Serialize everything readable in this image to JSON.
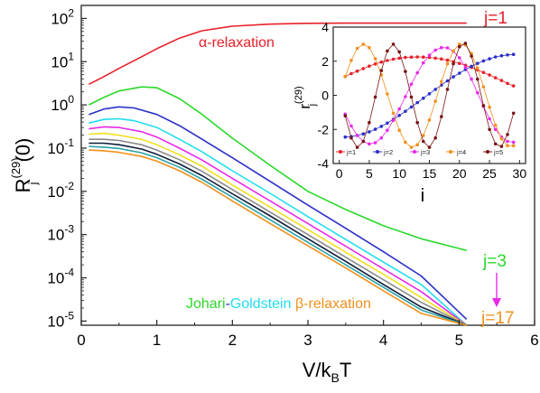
{
  "chart_data": [
    {
      "type": "line",
      "xlabel_main": "V/k",
      "xlabel_sub": "B",
      "xlabel_tail": "T",
      "ylabel_main": "R",
      "ylabel_sub": "j",
      "ylabel_sup": "(29)",
      "ylabel_tail": "(0)",
      "xlim": [
        0,
        6
      ],
      "ylim": [
        8e-06,
        200
      ],
      "yscale": "log",
      "x_ticks": [
        "0",
        "1",
        "2",
        "3",
        "4",
        "5",
        "6"
      ],
      "y_ticks": [
        {
          "value": 100,
          "mantissa": "10",
          "exp": "2"
        },
        {
          "value": 10,
          "mantissa": "10",
          "exp": "1"
        },
        {
          "value": 1,
          "mantissa": "10",
          "exp": "0"
        },
        {
          "value": 0.1,
          "mantissa": "10",
          "exp": "-1"
        },
        {
          "value": 0.01,
          "mantissa": "10",
          "exp": "-2"
        },
        {
          "value": 0.001,
          "mantissa": "10",
          "exp": "-3"
        },
        {
          "value": 0.0001,
          "mantissa": "10",
          "exp": "-4"
        },
        {
          "value": 1e-05,
          "mantissa": "10",
          "exp": "-5"
        }
      ],
      "grid": false,
      "series": [
        {
          "color": "#e8202a",
          "x": [
            0.1,
            0.3,
            0.5,
            0.8,
            1.0,
            1.3,
            1.6,
            2.0,
            2.5,
            3.0,
            3.5,
            4.0,
            4.5,
            5.1
          ],
          "y": [
            3.0,
            4.5,
            7.0,
            13,
            20,
            35,
            52,
            66,
            74,
            77,
            78,
            78,
            78,
            78
          ]
        },
        {
          "color": "#2bd82b",
          "x": [
            0.1,
            0.3,
            0.5,
            0.8,
            1.0,
            1.3,
            1.6,
            2.0,
            2.5,
            3.0,
            3.5,
            4.0,
            4.5,
            5.1
          ],
          "y": [
            1.0,
            1.5,
            2.1,
            2.6,
            2.5,
            1.4,
            0.6,
            0.17,
            0.04,
            0.01,
            0.0038,
            0.0016,
            0.0008,
            0.00043
          ]
        },
        {
          "color": "#2a2fc8",
          "x": [
            0.1,
            0.3,
            0.5,
            0.7,
            1.0,
            1.3,
            1.6,
            2.0,
            2.5,
            3.0,
            3.5,
            4.0,
            4.5,
            5.1
          ],
          "y": [
            0.6,
            0.8,
            0.9,
            0.85,
            0.6,
            0.33,
            0.16,
            0.06,
            0.017,
            0.0048,
            0.0014,
            0.0004,
            0.00011,
            1.1e-05
          ]
        },
        {
          "color": "#22ddee",
          "x": [
            0.1,
            0.3,
            0.5,
            0.7,
            1.0,
            1.3,
            1.6,
            2.0,
            2.5,
            3.0,
            3.5,
            4.0,
            4.5,
            5.1
          ],
          "y": [
            0.38,
            0.46,
            0.48,
            0.43,
            0.3,
            0.16,
            0.082,
            0.03,
            0.009,
            0.0026,
            0.00077,
            0.00023,
            7e-05,
            5.2e-06
          ]
        },
        {
          "color": "#e82ae8",
          "x": [
            0.1,
            0.3,
            0.5,
            0.8,
            1.0,
            1.3,
            1.6,
            2.0,
            2.5,
            3.0,
            3.5,
            4.0,
            4.5,
            5.1
          ],
          "y": [
            0.28,
            0.31,
            0.3,
            0.24,
            0.18,
            0.1,
            0.053,
            0.02,
            0.006,
            0.0018,
            0.00054,
            0.00016,
            4.8e-05,
            3.6e-06
          ]
        },
        {
          "color": "#f0e020",
          "x": [
            0.1,
            0.3,
            0.5,
            0.8,
            1.0,
            1.3,
            1.6,
            2.0,
            2.5,
            3.0,
            3.5,
            4.0,
            4.5,
            5.1
          ],
          "y": [
            0.21,
            0.22,
            0.2,
            0.16,
            0.12,
            0.07,
            0.038,
            0.014,
            0.0043,
            0.0013,
            0.00039,
            0.00012,
            3.5e-05,
            2.6e-06
          ]
        },
        {
          "color": "#8a8a8a",
          "x": [
            0.1,
            0.3,
            0.5,
            0.8,
            1.0,
            1.3,
            1.6,
            2.0,
            2.5,
            3.0,
            3.5,
            4.0,
            4.5,
            5.1
          ],
          "y": [
            0.16,
            0.16,
            0.15,
            0.12,
            0.09,
            0.054,
            0.029,
            0.011,
            0.0033,
            0.001,
            0.0003,
            9e-05,
            2.7e-05,
            2e-06
          ]
        },
        {
          "color": "#0c1d3a",
          "x": [
            0.1,
            0.3,
            0.5,
            0.8,
            1.0,
            1.3,
            1.6,
            2.0,
            2.5,
            3.0,
            3.5,
            4.0,
            4.5,
            5.1
          ],
          "y": [
            0.13,
            0.13,
            0.12,
            0.095,
            0.072,
            0.043,
            0.023,
            0.0088,
            0.0027,
            0.0008,
            0.00024,
            7e-05,
            2.1e-05,
            1.6e-06
          ]
        },
        {
          "color": "#2aa0a8",
          "x": [
            0.1,
            0.3,
            0.5,
            0.8,
            1.0,
            1.3,
            1.6,
            2.0,
            2.5,
            3.0,
            3.5,
            4.0,
            4.5,
            5.1
          ],
          "y": [
            0.11,
            0.105,
            0.098,
            0.078,
            0.06,
            0.036,
            0.019,
            0.0073,
            0.0022,
            0.00066,
            0.0002,
            6e-05,
            1.8e-05,
            1.3e-06
          ]
        },
        {
          "color": "#f0901c",
          "x": [
            0.1,
            0.3,
            0.5,
            0.8,
            1.0,
            1.3,
            1.6,
            2.0,
            2.5,
            3.0,
            3.5,
            4.0,
            4.5,
            5.1
          ],
          "y": [
            0.09,
            0.087,
            0.08,
            0.064,
            0.05,
            0.03,
            0.016,
            0.006,
            0.0018,
            0.00055,
            0.00017,
            5e-05,
            1.5e-05,
            1.1e-06
          ]
        }
      ],
      "annotations": {
        "j1": {
          "text": "j=1",
          "color": "#e8202a"
        },
        "alpha": {
          "text": "α-relaxation",
          "color": "#e8202a"
        },
        "j3": {
          "text": "j=3",
          "color": "#2bd82b"
        },
        "j17": {
          "text": "j=17",
          "color": "#f0901c"
        },
        "arrow_color": "#e82ae8",
        "jg": [
          {
            "text": "Johari",
            "color": "#2bd82b"
          },
          {
            "text": "-",
            "color": "#2a2fc8"
          },
          {
            "text": "Goldstein",
            "color": "#22ddee"
          },
          {
            "text": " ",
            "color": "#000000"
          },
          {
            "text": "β-relaxation",
            "color": "#f0901c"
          }
        ]
      }
    },
    {
      "type": "scatter",
      "role": "inset",
      "xlabel": "i",
      "ylabel_main": "r",
      "ylabel_sub": "j",
      "ylabel_sup": "(29)",
      "xlim": [
        -1,
        31
      ],
      "ylim": [
        -4,
        4
      ],
      "x_ticks": [
        "0",
        "5",
        "10",
        "15",
        "20",
        "25",
        "30"
      ],
      "y_ticks": [
        "4",
        "2",
        "0",
        "-2",
        "-4"
      ],
      "grid": false,
      "i": [
        1,
        2,
        3,
        4,
        5,
        6,
        7,
        8,
        9,
        10,
        11,
        12,
        13,
        14,
        15,
        16,
        17,
        18,
        19,
        20,
        21,
        22,
        23,
        24,
        25,
        26,
        27,
        28,
        29
      ],
      "series": [
        {
          "name": "j=1",
          "color": "#e8202a",
          "values": [
            1.1,
            1.27,
            1.42,
            1.57,
            1.71,
            1.84,
            1.95,
            2.04,
            2.12,
            2.18,
            2.22,
            2.24,
            2.25,
            2.24,
            2.22,
            2.18,
            2.13,
            2.06,
            1.97,
            1.87,
            1.76,
            1.63,
            1.49,
            1.34,
            1.19,
            1.03,
            0.87,
            0.7,
            0.55
          ]
        },
        {
          "name": "j=2",
          "color": "#2a2fc8",
          "values": [
            -2.45,
            -2.42,
            -2.35,
            -2.26,
            -2.14,
            -1.99,
            -1.82,
            -1.63,
            -1.41,
            -1.18,
            -0.94,
            -0.69,
            -0.43,
            -0.17,
            0.09,
            0.35,
            0.6,
            0.85,
            1.08,
            1.3,
            1.51,
            1.7,
            1.87,
            2.02,
            2.14,
            2.25,
            2.32,
            2.37,
            2.4
          ]
        },
        {
          "name": "j=3",
          "color": "#e82ae8",
          "values": [
            -1.1,
            -1.8,
            -2.35,
            -2.7,
            -2.85,
            -2.78,
            -2.5,
            -2.05,
            -1.47,
            -0.8,
            -0.08,
            0.65,
            1.32,
            1.9,
            2.35,
            2.65,
            2.8,
            2.78,
            2.58,
            2.2,
            1.65,
            0.95,
            0.15,
            -0.65,
            -1.38,
            -2.0,
            -2.45,
            -2.7,
            -2.75
          ]
        },
        {
          "name": "j=4",
          "color": "#f0901c",
          "values": [
            1.1,
            2.05,
            2.75,
            3.0,
            2.8,
            2.15,
            1.2,
            0.08,
            -1.05,
            -2.05,
            -2.75,
            -3.05,
            -2.9,
            -2.35,
            -1.45,
            -0.35,
            0.8,
            1.85,
            2.6,
            3.0,
            2.95,
            2.45,
            1.6,
            0.5,
            -0.7,
            -1.75,
            -2.55,
            -2.95,
            -2.95
          ]
        },
        {
          "name": "j=5",
          "color": "#7a1414",
          "values": [
            -1.2,
            -2.5,
            -3.05,
            -2.7,
            -1.6,
            -0.1,
            1.45,
            2.6,
            3.0,
            2.55,
            1.4,
            -0.1,
            -1.6,
            -2.7,
            -3.05,
            -2.5,
            -1.25,
            0.35,
            1.85,
            2.85,
            3.05,
            2.3,
            0.95,
            -0.6,
            -2.0,
            -2.85,
            -3.0,
            -2.3,
            -1.05
          ]
        }
      ]
    }
  ]
}
